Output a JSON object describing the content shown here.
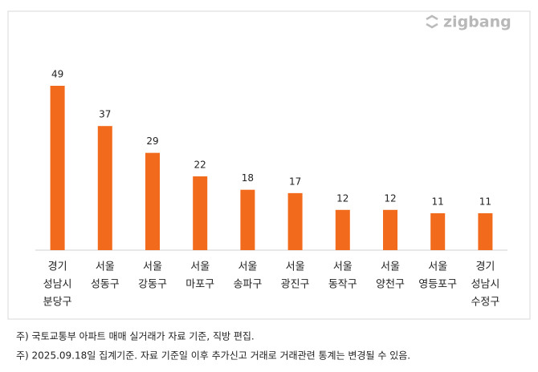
{
  "logo": "zigbang",
  "chart_data": {
    "type": "bar",
    "categories": [
      [
        "경기",
        "성남시",
        "분당구"
      ],
      [
        "서울",
        "성동구"
      ],
      [
        "서울",
        "강동구"
      ],
      [
        "서울",
        "마포구"
      ],
      [
        "서울",
        "송파구"
      ],
      [
        "서울",
        "광진구"
      ],
      [
        "서울",
        "동작구"
      ],
      [
        "서울",
        "양천구"
      ],
      [
        "서울",
        "영등포구"
      ],
      [
        "경기",
        "성남시",
        "수정구"
      ]
    ],
    "values": [
      49,
      37,
      29,
      22,
      18,
      17,
      12,
      12,
      11,
      11
    ],
    "color": "#f26a1b"
  },
  "notes": [
    "주) 국토교통부 아파트 매매 실거래가 자료 기준, 직방 편집.",
    "주)  2025.09.18일 집계기준. 자료 기준일 이후 추가신고 거래로 거래관련 통계는 변경될 수 있음."
  ]
}
